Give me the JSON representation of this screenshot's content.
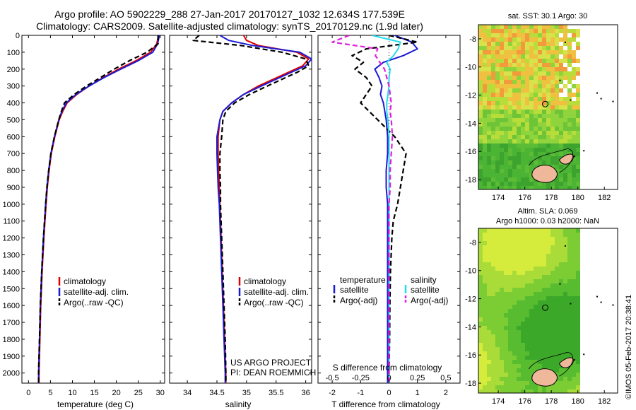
{
  "header": {
    "title_line1": "Argo profile: AO 5902229_288 27-Jan-2017 20170127_1032 12.634S 177.539E",
    "title_line2": "Climatology: CARS2009. Satellite-adjusted climatology: synTS_20170129.nc (1.9d later)"
  },
  "credits": {
    "project": "US ARGO PROJECT",
    "pi": "PI: DEAN ROEMMICH"
  },
  "timestamp": "©IMOS 05-Feb-2017 20:38:41",
  "colors": {
    "climatology": "#e00000",
    "satellite": "#1a1ad6",
    "argo": "#000000",
    "sat_salinity": "#22dcec",
    "argo_salinity_adj": "#e020e0"
  },
  "chart_data": [
    {
      "id": "temperature",
      "type": "line",
      "xlabel": "temperature (deg C)",
      "xlim": [
        -1.5,
        31
      ],
      "xticks": [
        0,
        5,
        10,
        15,
        20,
        25,
        30
      ],
      "ylim": [
        2060,
        0
      ],
      "yticks": [
        0,
        100,
        200,
        300,
        400,
        500,
        600,
        700,
        800,
        900,
        1000,
        1100,
        1200,
        1300,
        1400,
        1500,
        1600,
        1700,
        1800,
        1900,
        2000
      ],
      "depth": [
        0,
        50,
        100,
        150,
        200,
        250,
        300,
        350,
        400,
        450,
        500,
        600,
        700,
        800,
        900,
        1000,
        1200,
        1400,
        1600,
        1800,
        2000,
        2060
      ],
      "series": [
        {
          "name": "climatology",
          "style": "solid",
          "values": [
            29.6,
            29.2,
            27.8,
            24.5,
            20.5,
            17.0,
            13.8,
            11.0,
            8.8,
            7.8,
            7.0,
            6.0,
            5.2,
            4.7,
            4.3,
            4.0,
            3.5,
            3.1,
            2.8,
            2.6,
            2.4,
            2.4
          ]
        },
        {
          "name": "satellite-adj. clim.",
          "style": "solid",
          "values": [
            29.8,
            29.4,
            28.3,
            25.0,
            21.0,
            17.2,
            13.8,
            10.8,
            8.6,
            7.6,
            6.9,
            5.9,
            5.1,
            4.6,
            4.2,
            3.9,
            3.4,
            3.0,
            2.7,
            2.5,
            2.3,
            2.3
          ]
        },
        {
          "name": "Argo(..raw -QC)",
          "style": "dash",
          "values": [
            29.5,
            29.5,
            27.0,
            23.0,
            19.5,
            16.4,
            13.2,
            10.4,
            8.2,
            7.5,
            6.9,
            5.9,
            5.1,
            4.6,
            4.2,
            3.9,
            3.4,
            3.0,
            2.7,
            2.5,
            2.3,
            2.3
          ]
        }
      ],
      "legend": [
        "climatology",
        "satellite-adj. clim.",
        "Argo(..raw -QC)"
      ]
    },
    {
      "id": "salinity",
      "type": "line",
      "xlabel": "salinity",
      "xlim": [
        33.7,
        36.1
      ],
      "xticks": [
        34,
        34.5,
        35,
        35.5,
        36
      ],
      "xtick_labels": [
        "34",
        "34.5",
        "35",
        "35.5",
        "36"
      ],
      "ylim": [
        2060,
        0
      ],
      "depth": [
        0,
        30,
        60,
        100,
        140,
        180,
        220,
        260,
        300,
        350,
        400,
        450,
        500,
        600,
        700,
        800,
        900,
        1000,
        1200,
        1400,
        1600,
        1800,
        2000,
        2060
      ],
      "series": [
        {
          "name": "climatology",
          "style": "solid",
          "values": [
            34.95,
            35.0,
            35.2,
            35.85,
            36.05,
            35.95,
            35.7,
            35.45,
            35.2,
            34.95,
            34.75,
            34.6,
            34.55,
            34.52,
            34.52,
            34.53,
            34.54,
            34.55,
            34.57,
            34.59,
            34.61,
            34.63,
            34.65,
            34.65
          ]
        },
        {
          "name": "satellite-adj. clim.",
          "style": "solid",
          "values": [
            34.55,
            34.7,
            35.1,
            35.9,
            36.1,
            36.0,
            35.75,
            35.5,
            35.25,
            34.95,
            34.75,
            34.6,
            34.55,
            34.5,
            34.5,
            34.51,
            34.52,
            34.54,
            34.56,
            34.58,
            34.6,
            34.62,
            34.64,
            34.64
          ]
        },
        {
          "name": "Argo(..raw -QC)",
          "style": "dash",
          "values": [
            34.2,
            34.1,
            34.9,
            35.6,
            36.0,
            36.05,
            35.85,
            35.6,
            35.35,
            35.05,
            34.8,
            34.65,
            34.6,
            34.58,
            34.55,
            34.55,
            34.56,
            34.56,
            34.58,
            34.6,
            34.62,
            34.64,
            34.65,
            34.65
          ]
        }
      ],
      "legend": [
        "climatology",
        "satellite-adj. clim.",
        "Argo(..raw -QC)"
      ]
    },
    {
      "id": "difference",
      "type": "line",
      "xlabel_bottom": "T difference from climatology",
      "xlabel_top": "S difference from climatology",
      "xlim": [
        -2.5,
        2.5
      ],
      "xticks_bottom": [
        -2,
        -1,
        0,
        1,
        2
      ],
      "xticks_top": [
        -0.5,
        -0.25,
        0,
        0.25,
        0.5
      ],
      "xtick_labels_top": [
        "-0.5",
        "-0.25",
        "0",
        "0.25",
        "0.5"
      ],
      "s_scale_factor": 4,
      "ylim": [
        2060,
        0
      ],
      "depth": [
        0,
        40,
        80,
        120,
        160,
        200,
        250,
        300,
        350,
        400,
        450,
        500,
        600,
        700,
        800,
        900,
        1000,
        1100,
        1200,
        1400,
        1600,
        1800,
        2000,
        2060
      ],
      "series": [
        {
          "name": "temperature satellite",
          "variable": "T",
          "style": "solid",
          "values": [
            0.2,
            0.8,
            1.0,
            0.5,
            -0.2,
            -0.5,
            -0.35,
            -0.25,
            -0.3,
            -0.2,
            -0.15,
            -0.1,
            -0.05,
            -0.05,
            -0.1,
            -0.1,
            -0.05,
            -0.05,
            -0.05,
            -0.05,
            -0.05,
            -0.05,
            -0.05,
            -0.05
          ]
        },
        {
          "name": "temperature Argo(-adj)",
          "variable": "T",
          "style": "dash",
          "values": [
            0.0,
            1.0,
            -0.8,
            -1.3,
            -0.9,
            -1.2,
            -0.8,
            -0.6,
            -0.8,
            -1.0,
            -0.7,
            -0.4,
            0.2,
            0.6,
            0.5,
            0.4,
            0.3,
            0.15,
            0.1,
            0.05,
            0.03,
            0.02,
            0.0,
            0.0
          ]
        },
        {
          "name": "salinity satellite",
          "variable": "S",
          "style": "solid",
          "values": [
            -0.15,
            0.1,
            0.08,
            0.04,
            -0.02,
            0.01,
            0.0,
            0.0,
            -0.01,
            -0.02,
            -0.02,
            -0.01,
            0.0,
            0.0,
            0.0,
            0.0,
            0.0,
            0.0,
            0.0,
            0.0,
            0.0,
            0.0,
            0.0,
            0.0
          ]
        },
        {
          "name": "salinity Argo(-adj)",
          "variable": "S",
          "style": "dash",
          "values": [
            -0.35,
            -0.5,
            -0.1,
            -0.12,
            -0.08,
            -0.04,
            -0.02,
            0.0,
            0.01,
            0.02,
            0.01,
            0.02,
            0.03,
            0.02,
            0.01,
            0.01,
            0.0,
            0.0,
            0.0,
            0.0,
            0.0,
            0.0,
            0.0,
            0.0
          ]
        }
      ],
      "legend": {
        "temperature_header": "temperature",
        "salinity_header": "salinity",
        "temperature_items": [
          "satellite",
          "Argo(-adj)"
        ],
        "salinity_items": [
          "satellite",
          "Argo(-adj)"
        ]
      }
    },
    {
      "id": "sst_map",
      "type": "heatmap",
      "title": "sat. SST: 30.1  Argo: 30",
      "xlim": [
        172.5,
        183
      ],
      "ylim": [
        -18.7,
        -7
      ],
      "xticks": [
        174,
        176,
        178,
        180,
        182
      ],
      "yticks": [
        -8,
        -10,
        -12,
        -14,
        -16,
        -18
      ],
      "argo_position": {
        "lon": 177.539,
        "lat": -12.634
      }
    },
    {
      "id": "sla_map",
      "type": "heatmap",
      "title_line1": "Altim. SLA: 0.069",
      "title_line2": "Argo h1000: 0.03 h2000: NaN",
      "xlim": [
        172.5,
        183
      ],
      "ylim": [
        -18.7,
        -7
      ],
      "xticks": [
        174,
        176,
        178,
        180,
        182
      ],
      "yticks": [
        -8,
        -10,
        -12,
        -14,
        -16,
        -18
      ],
      "argo_position": {
        "lon": 177.539,
        "lat": -12.634
      }
    }
  ]
}
